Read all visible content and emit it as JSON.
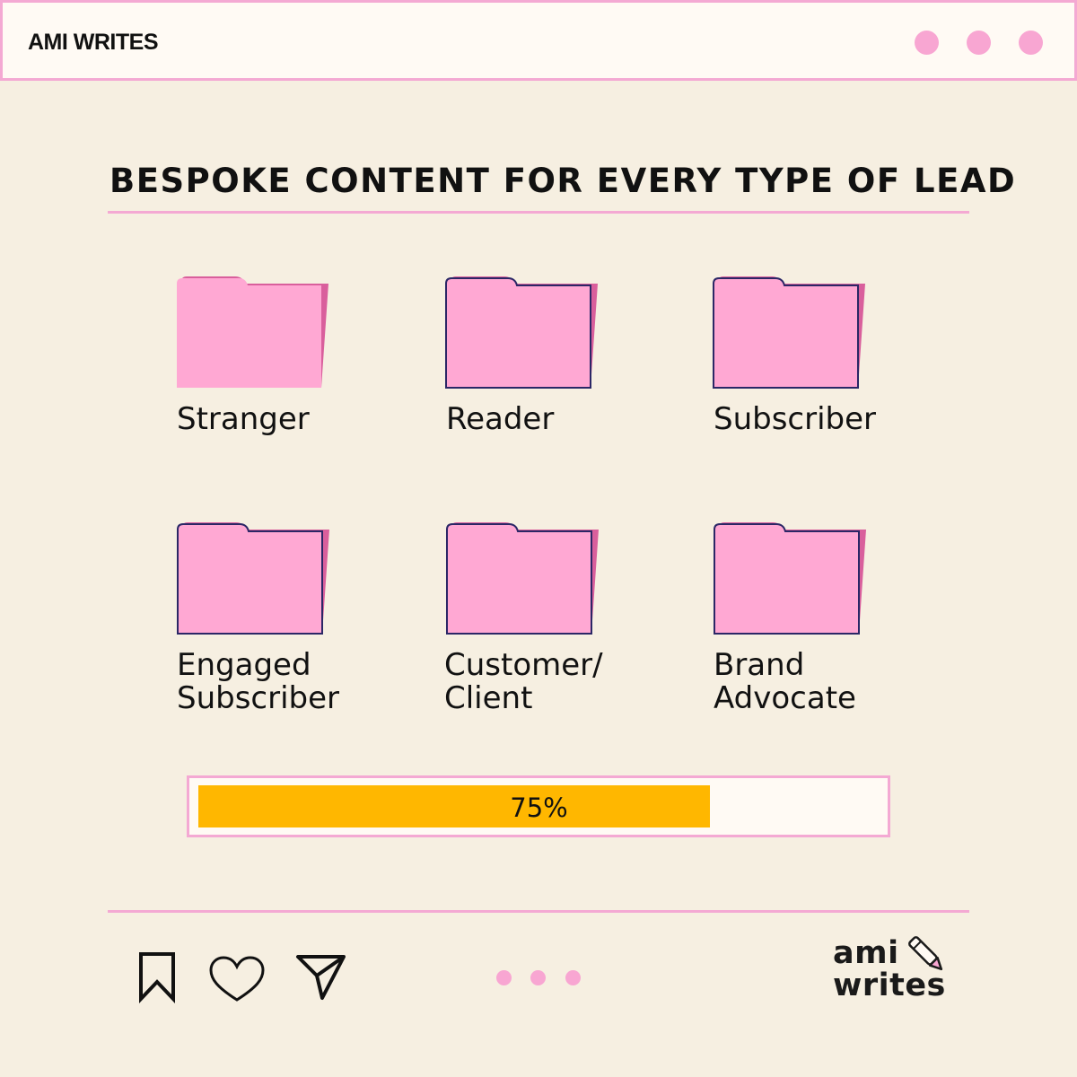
{
  "window": {
    "title": "AMI WRITES",
    "controls": [
      "window-dot",
      "window-dot",
      "window-dot"
    ]
  },
  "headline": "BESPOKE CONTENT FOR EVERY TYPE OF LEAD",
  "folders": [
    {
      "line1": "Stranger",
      "line2": ""
    },
    {
      "line1": "Reader",
      "line2": ""
    },
    {
      "line1": "Subscriber",
      "line2": ""
    },
    {
      "line1": "Engaged",
      "line2": "Subscriber"
    },
    {
      "line1": "Customer/",
      "line2": "Client"
    },
    {
      "line1": "Brand",
      "line2": "Advocate"
    }
  ],
  "progress": {
    "value": 0.75,
    "label": "75%"
  },
  "footer": {
    "actions": [
      "bookmark-icon",
      "heart-icon",
      "send-icon"
    ],
    "pager_dots": 3
  },
  "logo": {
    "line1": "ami",
    "line2": "writes"
  },
  "colors": {
    "background": "#f6efe1",
    "panel": "#fffaf4",
    "accent_pink": "#f4a9d3",
    "folder_front": "#ffa8d3",
    "folder_back": "#d95f9c",
    "folder_outline": "#2b2766",
    "progress_fill": "#ffb700"
  }
}
